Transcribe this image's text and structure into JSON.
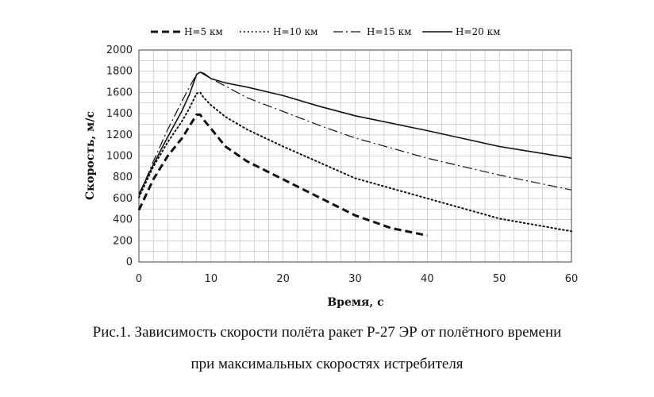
{
  "chart_data": {
    "type": "line",
    "xlabel": "Время, с",
    "ylabel": "Скорость, м/с",
    "xlim": [
      0,
      60
    ],
    "ylim": [
      0,
      2000
    ],
    "xticks": [
      0,
      10,
      20,
      30,
      40,
      50,
      60
    ],
    "yticks": [
      0,
      200,
      400,
      600,
      800,
      1000,
      1200,
      1400,
      1600,
      1800,
      2000
    ],
    "grid": true,
    "legend_position": "top",
    "series": [
      {
        "name": "H=5 км",
        "style": "dashed",
        "x": [
          0,
          2,
          4,
          6,
          7,
          8,
          8.5,
          9,
          10,
          12,
          15,
          20,
          25,
          30,
          35,
          40
        ],
        "y": [
          490,
          780,
          1000,
          1170,
          1280,
          1390,
          1390,
          1340,
          1260,
          1090,
          950,
          780,
          610,
          440,
          320,
          250
        ]
      },
      {
        "name": "H=10 км",
        "style": "dotted",
        "x": [
          0,
          2,
          4,
          6,
          7,
          8,
          8.5,
          9,
          10,
          12,
          15,
          20,
          25,
          30,
          40,
          50,
          60
        ],
        "y": [
          610,
          900,
          1130,
          1330,
          1450,
          1590,
          1600,
          1550,
          1480,
          1370,
          1250,
          1090,
          940,
          790,
          600,
          410,
          290
        ]
      },
      {
        "name": "H=15 км",
        "style": "dash-dot",
        "x": [
          0,
          2,
          4,
          6,
          7,
          8,
          8.5,
          9,
          10,
          12,
          15,
          20,
          25,
          30,
          40,
          50,
          60
        ],
        "y": [
          620,
          950,
          1250,
          1520,
          1650,
          1770,
          1790,
          1770,
          1730,
          1660,
          1550,
          1420,
          1290,
          1170,
          980,
          820,
          680
        ]
      },
      {
        "name": "H=20 км",
        "style": "solid",
        "x": [
          0,
          2,
          4,
          6,
          7,
          8,
          8.5,
          9,
          10,
          12,
          15,
          20,
          25,
          30,
          40,
          50,
          60
        ],
        "y": [
          640,
          920,
          1180,
          1430,
          1580,
          1770,
          1790,
          1780,
          1730,
          1690,
          1650,
          1570,
          1470,
          1380,
          1240,
          1090,
          980
        ]
      }
    ]
  },
  "caption": {
    "line1": "Рис.1. Зависимость скорости полёта ракет Р-27 ЭР от полётного времени",
    "line2": "при максимальных скоростях истребителя"
  }
}
